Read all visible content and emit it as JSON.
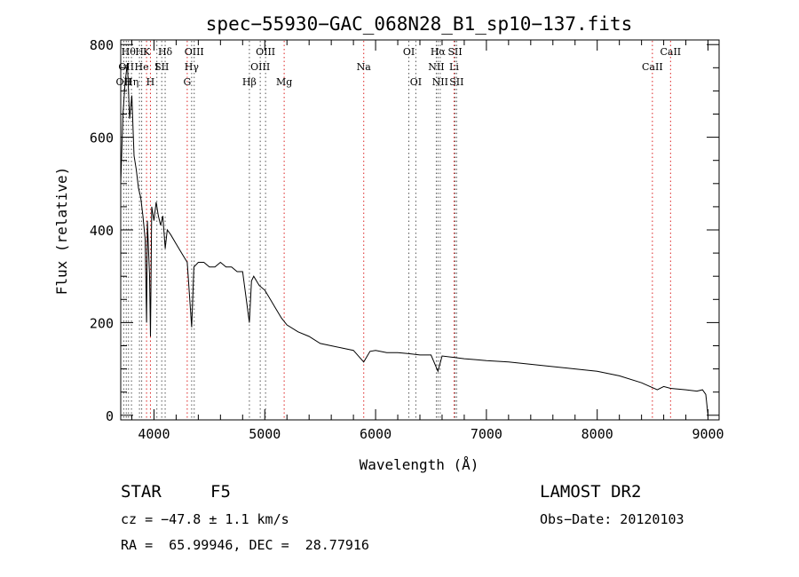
{
  "chart_data": {
    "type": "line",
    "title": "spec−55930−GAC_068N28_B1_sp10−137.fits",
    "xlabel": "Wavelength (Å)",
    "ylabel": "Flux (relative)",
    "xlim": [
      3700,
      9100
    ],
    "ylim": [
      -10,
      810
    ],
    "x_ticks": [
      4000,
      5000,
      6000,
      7000,
      8000,
      9000
    ],
    "y_ticks": [
      0,
      200,
      400,
      600,
      800
    ],
    "grid": false,
    "series": [
      {
        "x": [
          3700,
          3720,
          3740,
          3760,
          3780,
          3800,
          3820,
          3840,
          3860,
          3880,
          3900,
          3920,
          3933,
          3940,
          3960,
          3968,
          3980,
          4000,
          4020,
          4040,
          4060,
          4080,
          4101,
          4120,
          4150,
          4200,
          4250,
          4300,
          4340,
          4360,
          4400,
          4450,
          4500,
          4550,
          4600,
          4650,
          4700,
          4750,
          4800,
          4861,
          4880,
          4900,
          4950,
          5000,
          5050,
          5100,
          5150,
          5200,
          5300,
          5400,
          5500,
          5600,
          5700,
          5800,
          5893,
          5950,
          6000,
          6100,
          6200,
          6300,
          6400,
          6500,
          6563,
          6600,
          6700,
          6800,
          6900,
          7000,
          7200,
          7400,
          7600,
          7800,
          8000,
          8200,
          8400,
          8542,
          8600,
          8662,
          8800,
          8900,
          8950,
          8980,
          9000
        ],
        "y": [
          500,
          650,
          720,
          760,
          640,
          690,
          560,
          530,
          490,
          470,
          430,
          380,
          200,
          420,
          300,
          170,
          450,
          420,
          460,
          430,
          410,
          430,
          360,
          400,
          390,
          370,
          350,
          330,
          190,
          320,
          330,
          330,
          320,
          320,
          330,
          320,
          320,
          310,
          310,
          200,
          290,
          300,
          280,
          270,
          250,
          230,
          210,
          195,
          180,
          170,
          155,
          150,
          145,
          140,
          115,
          138,
          140,
          135,
          135,
          133,
          130,
          130,
          95,
          128,
          125,
          122,
          120,
          118,
          115,
          110,
          105,
          100,
          95,
          85,
          70,
          55,
          62,
          58,
          55,
          52,
          55,
          45,
          0
        ]
      }
    ],
    "line_labels": [
      {
        "x": 3727,
        "label": "OII",
        "row": 2,
        "color": "black"
      },
      {
        "x": 3750,
        "label": "OII",
        "row": 1,
        "color": "black"
      },
      {
        "x": 3770,
        "label": "Hθ",
        "row": 0,
        "color": "black"
      },
      {
        "x": 3797,
        "label": "Hη",
        "row": 2,
        "color": "black"
      },
      {
        "x": 3869,
        "label": "H",
        "row": 0,
        "color": "black"
      },
      {
        "x": 3889,
        "label": "He",
        "row": 1,
        "color": "black"
      },
      {
        "x": 3933,
        "label": "K",
        "row": 0,
        "color": "red"
      },
      {
        "x": 3968,
        "label": "H",
        "row": 2,
        "color": "red"
      },
      {
        "x": 4026,
        "label": "I",
        "row": 1,
        "color": "black"
      },
      {
        "x": 4070,
        "label": "SII",
        "row": 1,
        "color": "black"
      },
      {
        "x": 4101,
        "label": "Hδ",
        "row": 0,
        "color": "black"
      },
      {
        "x": 4300,
        "label": "G",
        "row": 2,
        "color": "red"
      },
      {
        "x": 4340,
        "label": "Hγ",
        "row": 1,
        "color": "black"
      },
      {
        "x": 4363,
        "label": "OIII",
        "row": 0,
        "color": "black"
      },
      {
        "x": 4861,
        "label": "Hβ",
        "row": 2,
        "color": "black"
      },
      {
        "x": 4959,
        "label": "OIII",
        "row": 1,
        "color": "black"
      },
      {
        "x": 5007,
        "label": "OIII",
        "row": 0,
        "color": "black"
      },
      {
        "x": 5175,
        "label": "Mg",
        "row": 2,
        "color": "red"
      },
      {
        "x": 5893,
        "label": "Na",
        "row": 1,
        "color": "red"
      },
      {
        "x": 6300,
        "label": "OI",
        "row": 0,
        "color": "black"
      },
      {
        "x": 6363,
        "label": "OI",
        "row": 2,
        "color": "black"
      },
      {
        "x": 6548,
        "label": "NII",
        "row": 1,
        "color": "black"
      },
      {
        "x": 6563,
        "label": "Hα",
        "row": 0,
        "color": "black"
      },
      {
        "x": 6583,
        "label": "NII",
        "row": 2,
        "color": "black"
      },
      {
        "x": 6708,
        "label": "Li",
        "row": 1,
        "color": "red"
      },
      {
        "x": 6717,
        "label": "SII",
        "row": 0,
        "color": "black"
      },
      {
        "x": 6731,
        "label": "SII",
        "row": 2,
        "color": "black"
      },
      {
        "x": 8498,
        "label": "CaII",
        "row": 1,
        "color": "red"
      },
      {
        "x": 8662,
        "label": "CaII",
        "row": 0,
        "color": "red"
      }
    ]
  },
  "info": {
    "object_class": "STAR",
    "subclass": "F5",
    "redshift": "cz = −47.8 ± 1.1 km/s",
    "coords": "RA =  65.99946, DEC =  28.77916",
    "survey": "LAMOST DR2",
    "obs_date": "Obs−Date: 20120103"
  }
}
